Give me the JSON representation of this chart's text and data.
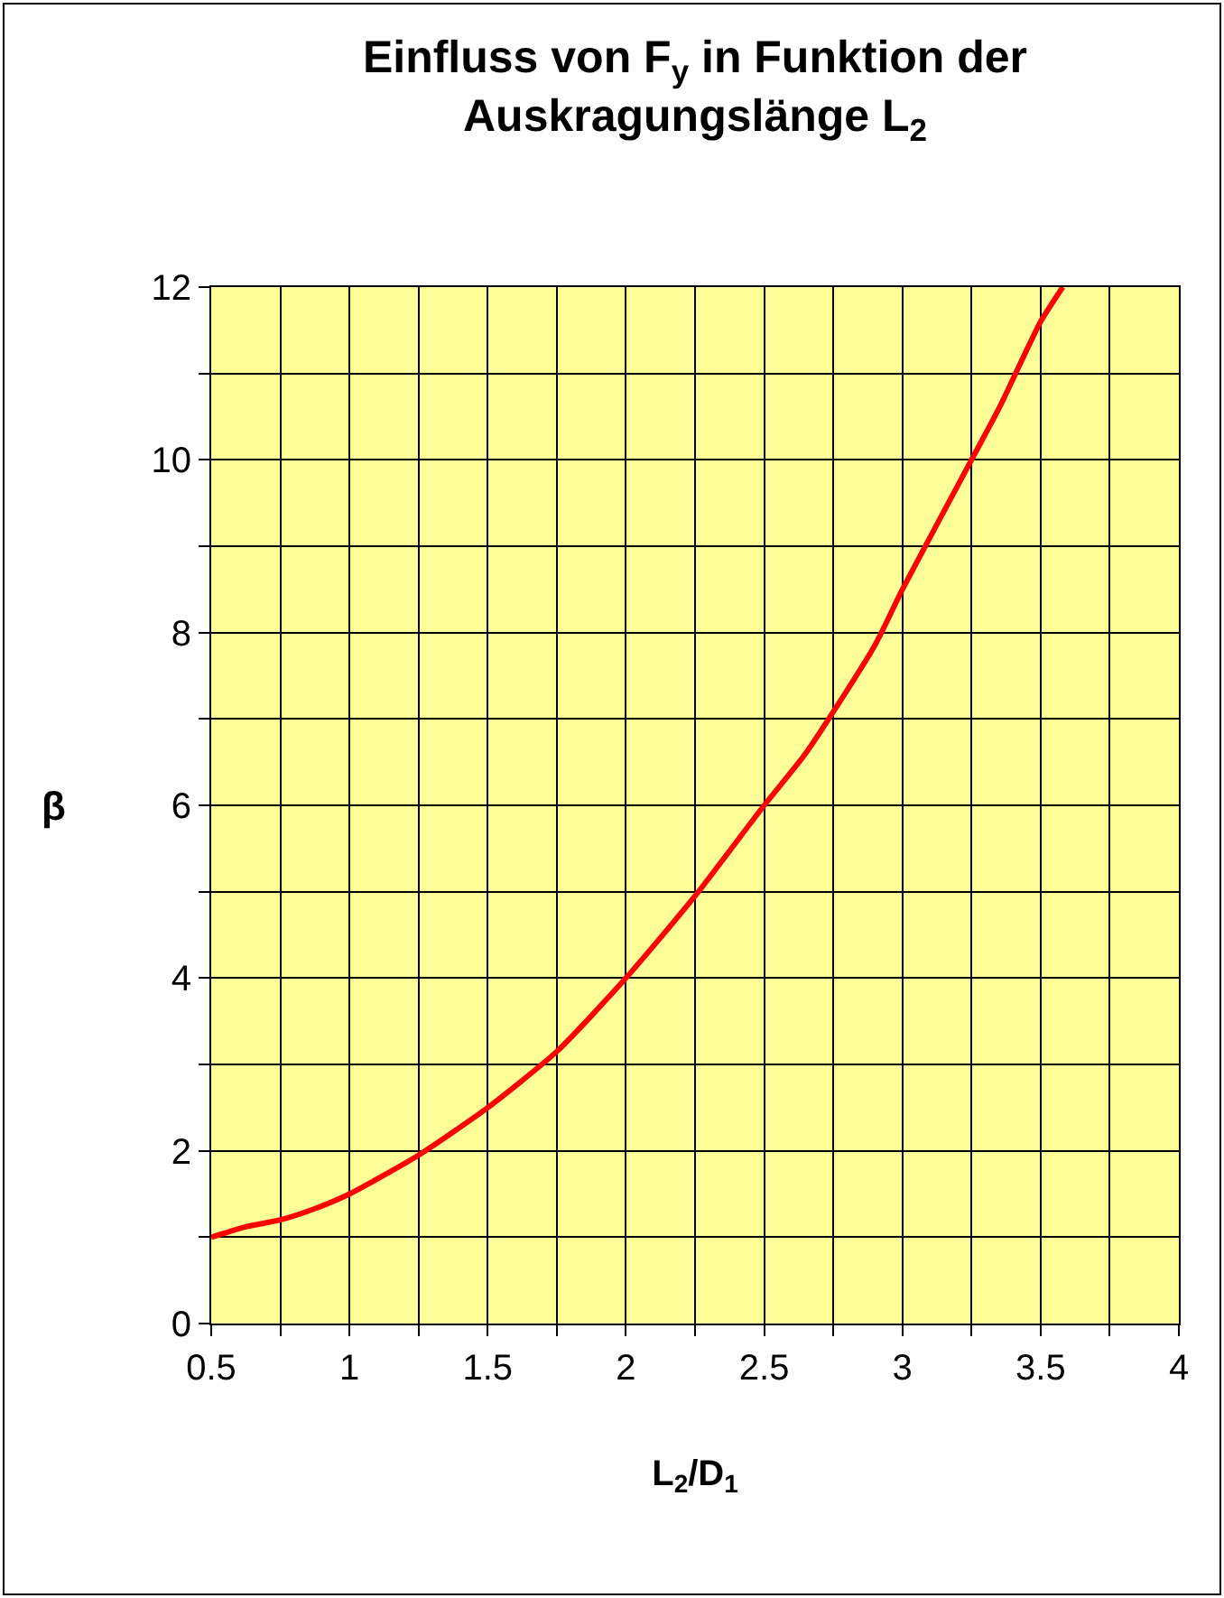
{
  "chart_data": {
    "type": "line",
    "title": "Einfluss von F$_{y}$ in Funktion der\nAuskragungslänge L$_{2}$",
    "xlabel": "L$_{2}$/D$_{1}$",
    "ylabel": "β",
    "x": [
      0.5,
      0.625,
      0.75,
      0.875,
      1.0,
      1.25,
      1.5,
      1.75,
      2.0,
      2.25,
      2.5,
      2.65,
      2.9,
      3.0,
      3.25,
      3.35,
      3.5,
      3.58
    ],
    "series": [
      {
        "color": "#ff0000",
        "values": [
          1.0,
          1.12,
          1.2,
          1.33,
          1.5,
          1.95,
          2.5,
          3.15,
          4.0,
          4.95,
          6.0,
          6.6,
          7.85,
          8.5,
          10.0,
          10.6,
          11.6,
          12.0
        ]
      }
    ],
    "xlim": [
      0.5,
      4
    ],
    "ylim": [
      0,
      12
    ],
    "xticks": [
      0.5,
      {
        "value": 0.75,
        "label": null
      },
      1,
      {
        "value": 1.25,
        "label": null
      },
      1.5,
      {
        "value": 1.75,
        "label": null
      },
      2,
      {
        "value": 2.25,
        "label": null
      },
      2.5,
      {
        "value": 2.75,
        "label": null
      },
      3,
      {
        "value": 3.25,
        "label": null
      },
      3.5,
      {
        "value": 3.75,
        "label": null
      },
      4
    ],
    "yticks": [
      0,
      {
        "value": 1,
        "label": null
      },
      2,
      {
        "value": 3,
        "label": null
      },
      4,
      {
        "value": 5,
        "label": null
      },
      6,
      {
        "value": 7,
        "label": null
      },
      8,
      {
        "value": 9,
        "label": null
      },
      10,
      {
        "value": 11,
        "label": null
      },
      12
    ],
    "grid": true,
    "marker": "none",
    "line_style": "solid"
  }
}
